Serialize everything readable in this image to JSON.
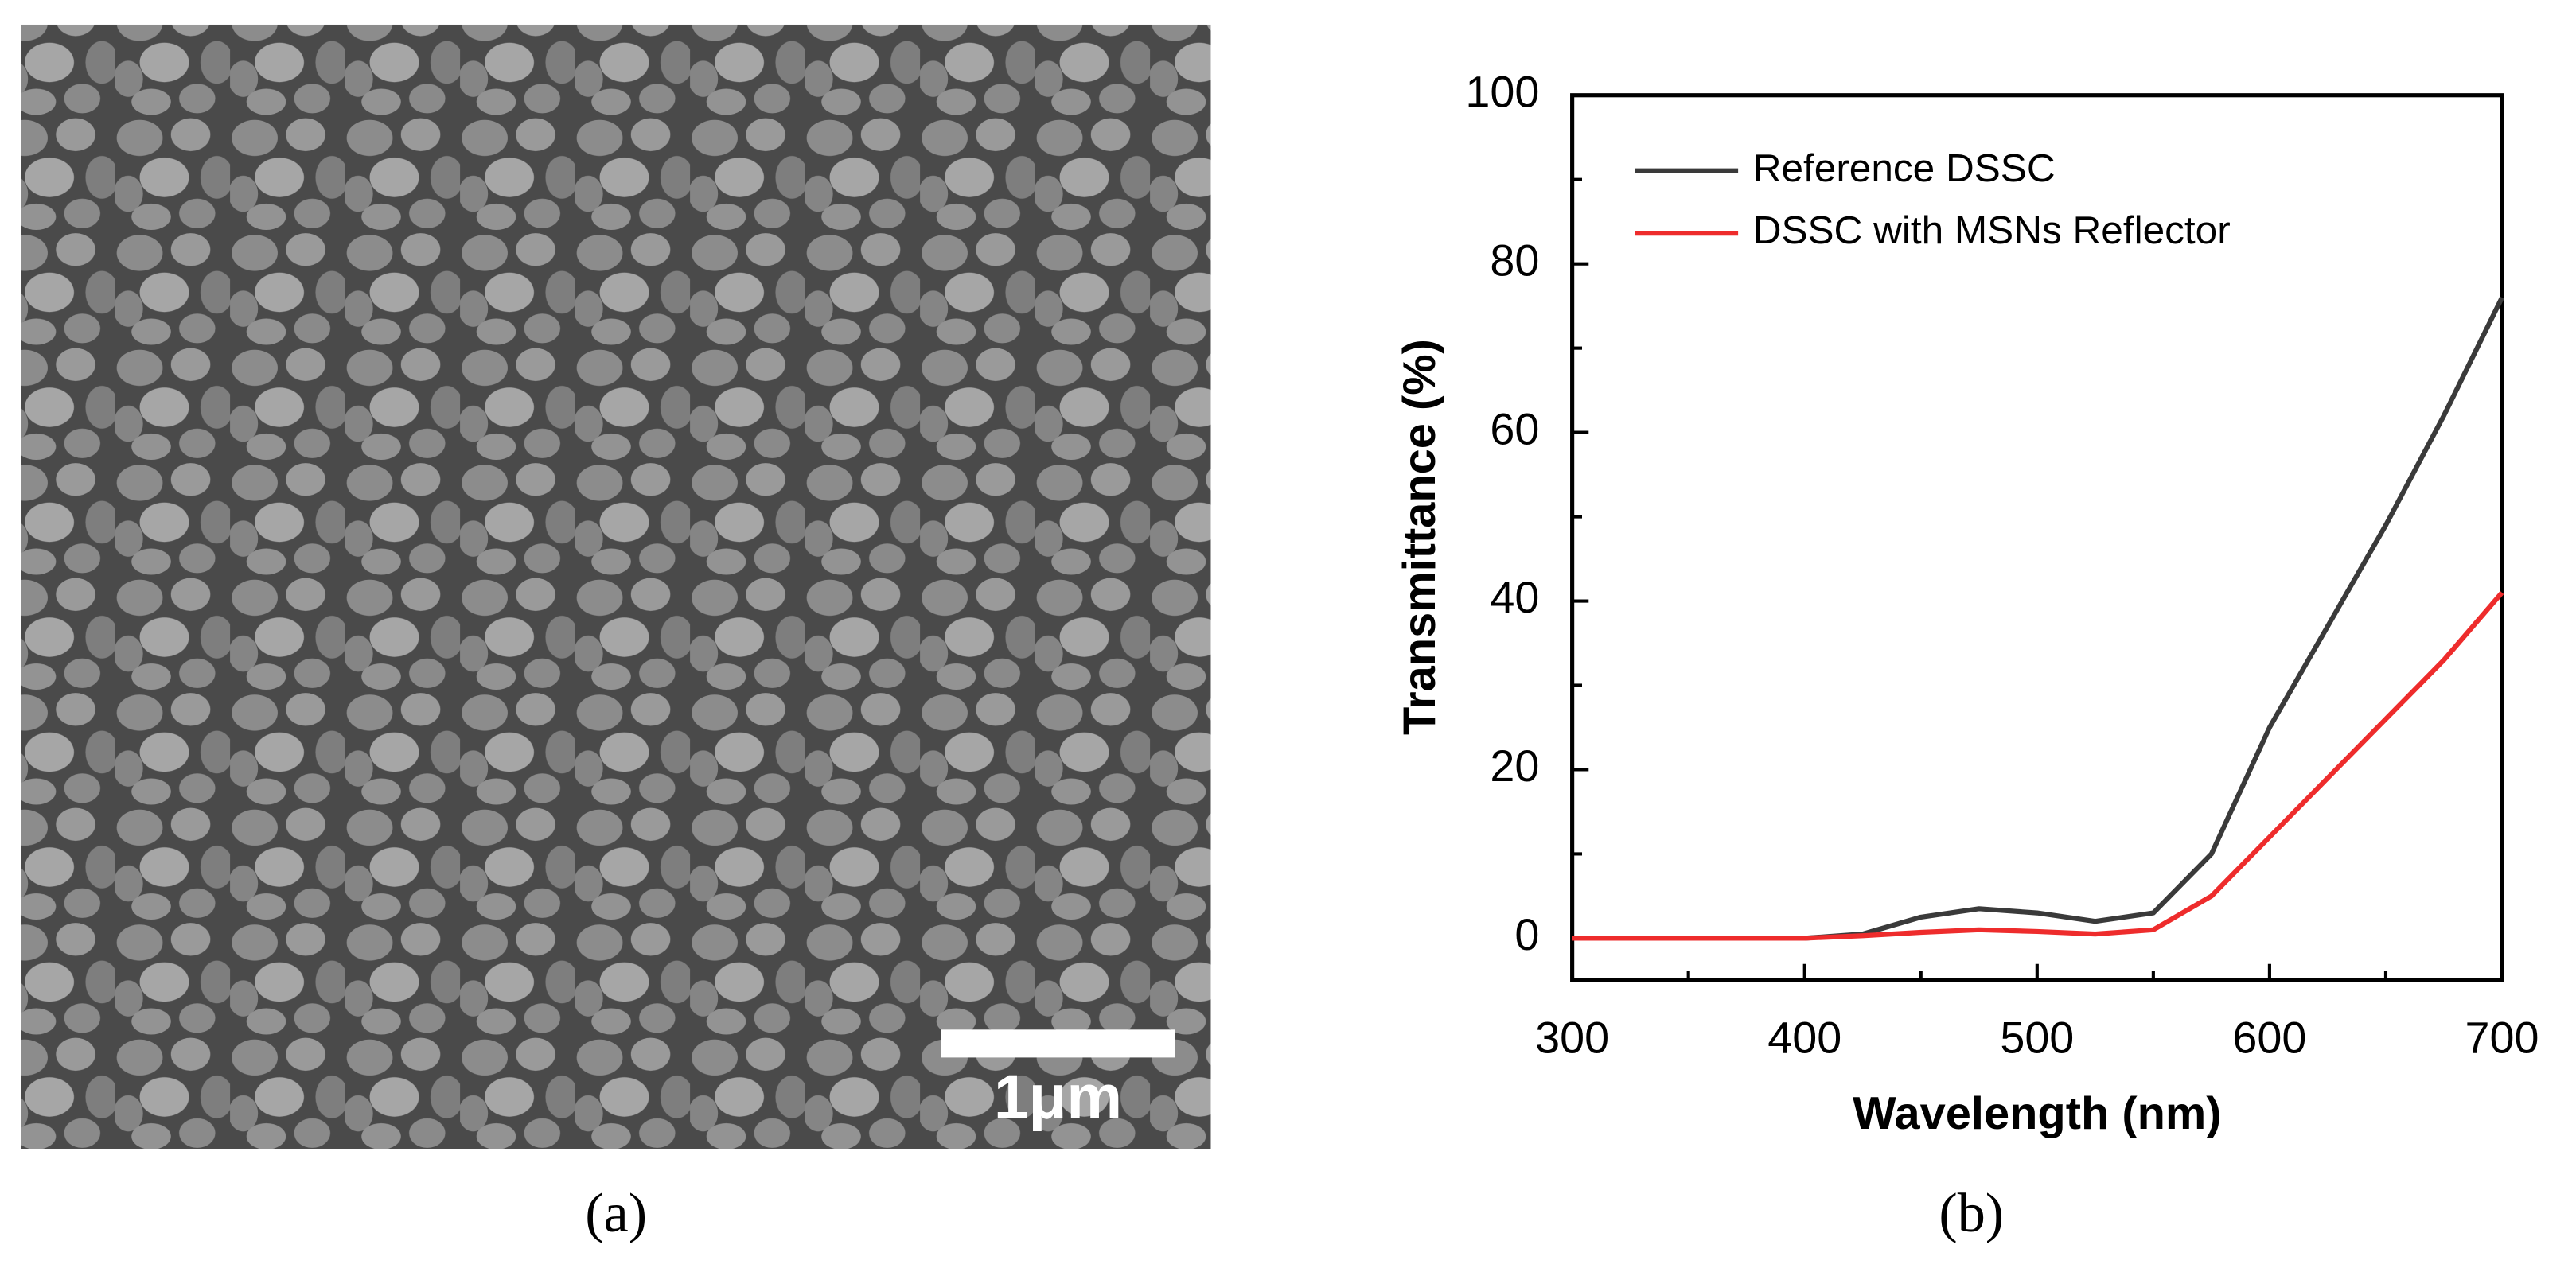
{
  "image": {
    "scale_bar": "1μm",
    "caption": "(a)"
  },
  "chart_data": {
    "type": "line",
    "caption": "(b)",
    "xlabel": "Wavelength (nm)",
    "ylabel": "Transmittance (%)",
    "x": [
      300,
      325,
      350,
      375,
      400,
      425,
      450,
      475,
      500,
      525,
      550,
      575,
      600,
      625,
      650,
      675,
      700
    ],
    "series": [
      {
        "name": "Reference DSSC",
        "color": "#3a3a3a",
        "values": [
          0,
          0,
          0,
          0,
          0,
          0.5,
          2.5,
          3.5,
          3,
          2,
          3,
          10,
          25,
          37,
          49,
          62,
          76
        ]
      },
      {
        "name": "DSSC with MSNs Reflector",
        "color": "#ee2c2c",
        "values": [
          0,
          0,
          0,
          0,
          0,
          0.3,
          0.7,
          1,
          0.8,
          0.5,
          1,
          5,
          12,
          19,
          26,
          33,
          41
        ]
      }
    ],
    "xlim": [
      300,
      700
    ],
    "xticks": [
      300,
      400,
      500,
      600,
      700
    ],
    "xminorticks": [
      350,
      450,
      550,
      650
    ],
    "ylim": [
      -5,
      100
    ],
    "yticks": [
      0,
      20,
      40,
      60,
      80,
      100
    ],
    "yminorticks": [
      10,
      30,
      50,
      70,
      90
    ],
    "legend": "upper left",
    "grid": false
  }
}
